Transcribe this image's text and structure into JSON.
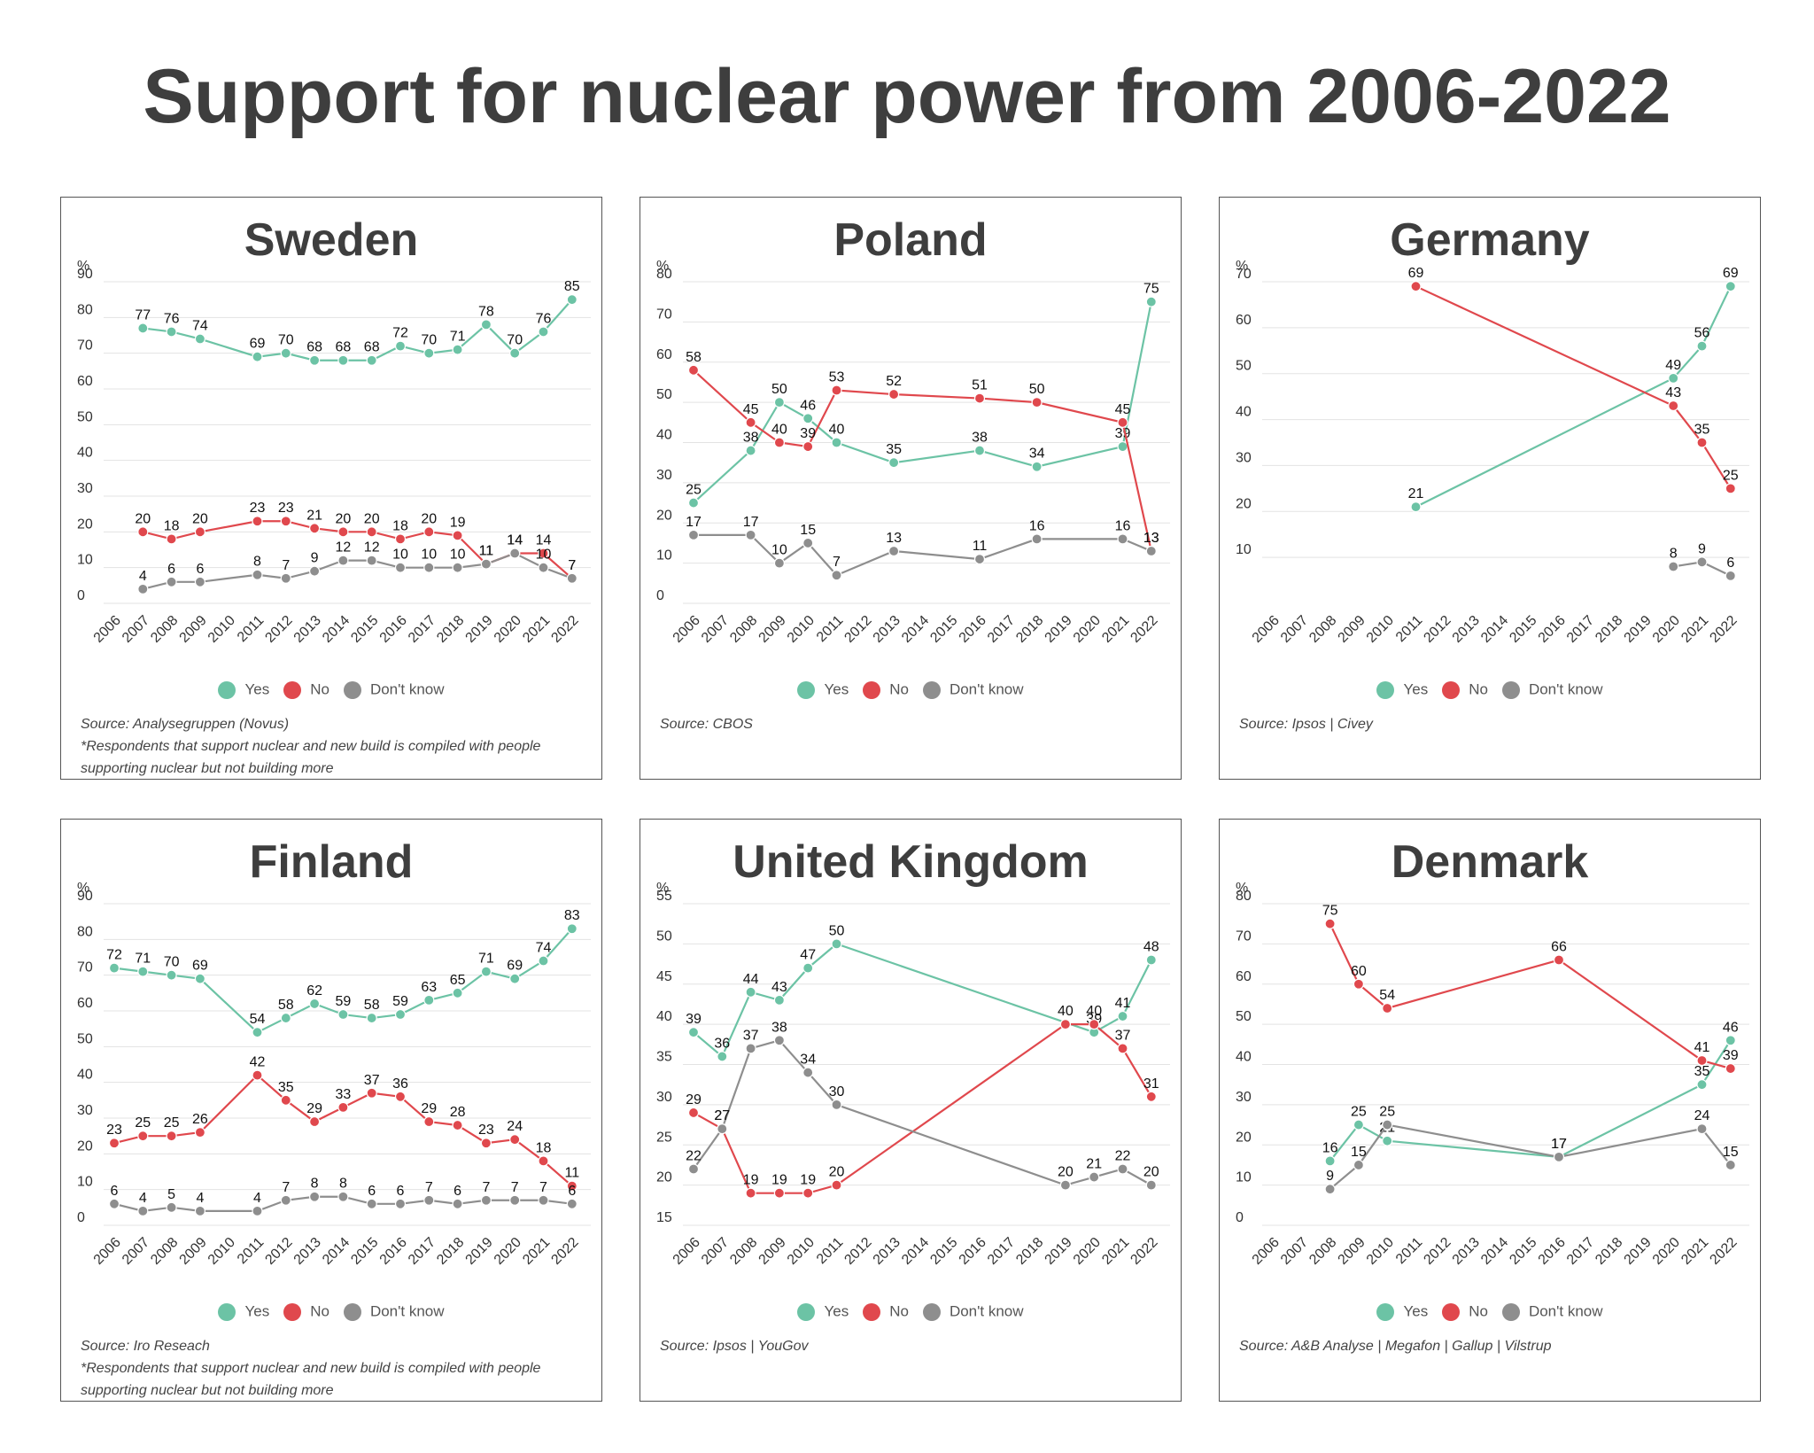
{
  "title": "Support for nuclear power from 2006-2022",
  "colors": {
    "yes": "#6cc3a5",
    "no": "#e0484d",
    "dk": "#8e8e8e",
    "grid": "#e3e3e3"
  },
  "legend": {
    "yes": "Yes",
    "no": "No",
    "dk": "Don't know"
  },
  "y_unit": "%",
  "years": [
    "2006",
    "2007",
    "2008",
    "2009",
    "2010",
    "2011",
    "2012",
    "2013",
    "2014",
    "2015",
    "2016",
    "2017",
    "2018",
    "2019",
    "2020",
    "2021",
    "2022"
  ],
  "chart_data": [
    {
      "type": "line",
      "title": "Sweden",
      "ylim": [
        0,
        90
      ],
      "yticks": [
        "0",
        "10",
        "20",
        "30",
        "40",
        "50",
        "60",
        "70",
        "80",
        "90"
      ],
      "source": "Source: Analysegruppen (Novus)",
      "note": "*Respondents that support nuclear and new build is compiled with people supporting nuclear but not building more",
      "series": [
        {
          "name": "Yes",
          "points": [
            [
              2007,
              77
            ],
            [
              2008,
              76
            ],
            [
              2009,
              74
            ],
            [
              2011,
              69
            ],
            [
              2012,
              70
            ],
            [
              2013,
              68
            ],
            [
              2014,
              68
            ],
            [
              2015,
              68
            ],
            [
              2016,
              72
            ],
            [
              2017,
              70
            ],
            [
              2018,
              71
            ],
            [
              2019,
              78
            ],
            [
              2020,
              70
            ],
            [
              2021,
              76
            ],
            [
              2022,
              85
            ]
          ]
        },
        {
          "name": "No",
          "points": [
            [
              2007,
              20
            ],
            [
              2008,
              18
            ],
            [
              2009,
              20
            ],
            [
              2011,
              23
            ],
            [
              2012,
              23
            ],
            [
              2013,
              21
            ],
            [
              2014,
              20
            ],
            [
              2015,
              20
            ],
            [
              2016,
              18
            ],
            [
              2017,
              20
            ],
            [
              2018,
              19
            ],
            [
              2019,
              11
            ],
            [
              2020,
              14
            ],
            [
              2021,
              14
            ],
            [
              2022,
              7
            ]
          ]
        },
        {
          "name": "Don't know",
          "points": [
            [
              2007,
              4
            ],
            [
              2008,
              6
            ],
            [
              2009,
              6
            ],
            [
              2011,
              8
            ],
            [
              2012,
              7
            ],
            [
              2013,
              9
            ],
            [
              2014,
              12
            ],
            [
              2015,
              12
            ],
            [
              2016,
              10
            ],
            [
              2017,
              10
            ],
            [
              2018,
              10
            ],
            [
              2019,
              11
            ],
            [
              2020,
              14
            ],
            [
              2021,
              10
            ],
            [
              2022,
              7
            ]
          ]
        }
      ]
    },
    {
      "type": "line",
      "title": "Poland",
      "ylim": [
        0,
        80
      ],
      "yticks": [
        "0",
        "10",
        "20",
        "30",
        "40",
        "50",
        "60",
        "70",
        "80"
      ],
      "source": "Source: CBOS",
      "note": "",
      "series": [
        {
          "name": "Yes",
          "points": [
            [
              2006,
              25
            ],
            [
              2008,
              38
            ],
            [
              2009,
              50
            ],
            [
              2010,
              46
            ],
            [
              2011,
              40
            ],
            [
              2013,
              35
            ],
            [
              2016,
              38
            ],
            [
              2018,
              34
            ],
            [
              2021,
              39
            ],
            [
              2022,
              75
            ]
          ]
        },
        {
          "name": "No",
          "points": [
            [
              2006,
              58
            ],
            [
              2008,
              45
            ],
            [
              2009,
              40
            ],
            [
              2010,
              39
            ],
            [
              2011,
              53
            ],
            [
              2013,
              52
            ],
            [
              2016,
              51
            ],
            [
              2018,
              50
            ],
            [
              2021,
              45
            ],
            [
              2022,
              13
            ]
          ]
        },
        {
          "name": "Don't know",
          "points": [
            [
              2006,
              17
            ],
            [
              2008,
              17
            ],
            [
              2009,
              10
            ],
            [
              2010,
              15
            ],
            [
              2011,
              7
            ],
            [
              2013,
              13
            ],
            [
              2016,
              11
            ],
            [
              2018,
              16
            ],
            [
              2021,
              16
            ],
            [
              2022,
              13
            ]
          ]
        }
      ]
    },
    {
      "type": "line",
      "title": "Germany",
      "ylim": [
        0,
        70
      ],
      "yticks": [
        "10",
        "20",
        "30",
        "40",
        "50",
        "60",
        "70"
      ],
      "source": "Source: Ipsos | Civey",
      "note": "",
      "series": [
        {
          "name": "Yes",
          "points": [
            [
              2011,
              21
            ],
            [
              2020,
              49
            ],
            [
              2021,
              56
            ],
            [
              2022,
              69
            ]
          ]
        },
        {
          "name": "No",
          "points": [
            [
              2011,
              69
            ],
            [
              2020,
              43
            ],
            [
              2021,
              35
            ],
            [
              2022,
              25
            ]
          ]
        },
        {
          "name": "Don't know",
          "points": [
            [
              2020,
              8
            ],
            [
              2021,
              9
            ],
            [
              2022,
              6
            ]
          ]
        }
      ]
    },
    {
      "type": "line",
      "title": "Finland",
      "ylim": [
        0,
        90
      ],
      "yticks": [
        "0",
        "10",
        "20",
        "30",
        "40",
        "50",
        "60",
        "70",
        "80",
        "90"
      ],
      "source": "Source: Iro Reseach",
      "note": "*Respondents that support nuclear and new build is compiled with people supporting nuclear but not building more",
      "series": [
        {
          "name": "Yes",
          "points": [
            [
              2006,
              72
            ],
            [
              2007,
              71
            ],
            [
              2008,
              70
            ],
            [
              2009,
              69
            ],
            [
              2011,
              54
            ],
            [
              2012,
              58
            ],
            [
              2013,
              62
            ],
            [
              2014,
              59
            ],
            [
              2015,
              58
            ],
            [
              2016,
              59
            ],
            [
              2017,
              63
            ],
            [
              2018,
              65
            ],
            [
              2019,
              71
            ],
            [
              2020,
              69
            ],
            [
              2021,
              74
            ],
            [
              2022,
              83
            ]
          ]
        },
        {
          "name": "No",
          "points": [
            [
              2006,
              23
            ],
            [
              2007,
              25
            ],
            [
              2008,
              25
            ],
            [
              2009,
              26
            ],
            [
              2011,
              42
            ],
            [
              2012,
              35
            ],
            [
              2013,
              29
            ],
            [
              2014,
              33
            ],
            [
              2015,
              37
            ],
            [
              2016,
              36
            ],
            [
              2017,
              29
            ],
            [
              2018,
              28
            ],
            [
              2019,
              23
            ],
            [
              2020,
              24
            ],
            [
              2021,
              18
            ],
            [
              2022,
              11
            ]
          ]
        },
        {
          "name": "Don't know",
          "points": [
            [
              2006,
              6
            ],
            [
              2007,
              4
            ],
            [
              2008,
              5
            ],
            [
              2009,
              4
            ],
            [
              2011,
              4
            ],
            [
              2012,
              7
            ],
            [
              2013,
              8
            ],
            [
              2014,
              8
            ],
            [
              2015,
              6
            ],
            [
              2016,
              6
            ],
            [
              2017,
              7
            ],
            [
              2018,
              6
            ],
            [
              2019,
              7
            ],
            [
              2020,
              7
            ],
            [
              2021,
              7
            ],
            [
              2022,
              6
            ]
          ]
        }
      ]
    },
    {
      "type": "line",
      "title": "United Kingdom",
      "ylim": [
        15,
        55
      ],
      "yticks": [
        "15",
        "20",
        "25",
        "30",
        "35",
        "40",
        "45",
        "50",
        "55"
      ],
      "source": "Source: Ipsos | YouGov",
      "note": "",
      "series": [
        {
          "name": "Yes",
          "points": [
            [
              2006,
              39
            ],
            [
              2007,
              36
            ],
            [
              2008,
              44
            ],
            [
              2009,
              43
            ],
            [
              2010,
              47
            ],
            [
              2011,
              50
            ],
            [
              2020,
              39
            ],
            [
              2021,
              41
            ],
            [
              2022,
              48
            ]
          ]
        },
        {
          "name": "No",
          "points": [
            [
              2006,
              29
            ],
            [
              2007,
              27
            ],
            [
              2008,
              19
            ],
            [
              2009,
              19
            ],
            [
              2010,
              19
            ],
            [
              2011,
              20
            ],
            [
              2019,
              40
            ],
            [
              2020,
              40
            ],
            [
              2021,
              37
            ],
            [
              2022,
              31
            ]
          ]
        },
        {
          "name": "Don't know",
          "points": [
            [
              2006,
              22
            ],
            [
              2007,
              27
            ],
            [
              2008,
              37
            ],
            [
              2009,
              38
            ],
            [
              2010,
              34
            ],
            [
              2011,
              30
            ],
            [
              2019,
              20
            ],
            [
              2020,
              21
            ],
            [
              2021,
              22
            ],
            [
              2022,
              20
            ]
          ]
        }
      ]
    },
    {
      "type": "line",
      "title": "Denmark",
      "ylim": [
        0,
        80
      ],
      "yticks": [
        "0",
        "10",
        "20",
        "30",
        "40",
        "50",
        "60",
        "70",
        "80"
      ],
      "source": "Source: A&B Analyse | Megafon | Gallup | Vilstrup",
      "note": "",
      "series": [
        {
          "name": "Yes",
          "points": [
            [
              2008,
              16
            ],
            [
              2009,
              25
            ],
            [
              2010,
              21
            ],
            [
              2016,
              17
            ],
            [
              2021,
              35
            ],
            [
              2022,
              46
            ]
          ]
        },
        {
          "name": "No",
          "points": [
            [
              2008,
              75
            ],
            [
              2009,
              60
            ],
            [
              2010,
              54
            ],
            [
              2016,
              66
            ],
            [
              2021,
              41
            ],
            [
              2022,
              39
            ]
          ]
        },
        {
          "name": "Don't know",
          "points": [
            [
              2008,
              9
            ],
            [
              2009,
              15
            ],
            [
              2010,
              25
            ],
            [
              2016,
              17
            ],
            [
              2021,
              24
            ],
            [
              2022,
              15
            ]
          ]
        }
      ]
    }
  ]
}
